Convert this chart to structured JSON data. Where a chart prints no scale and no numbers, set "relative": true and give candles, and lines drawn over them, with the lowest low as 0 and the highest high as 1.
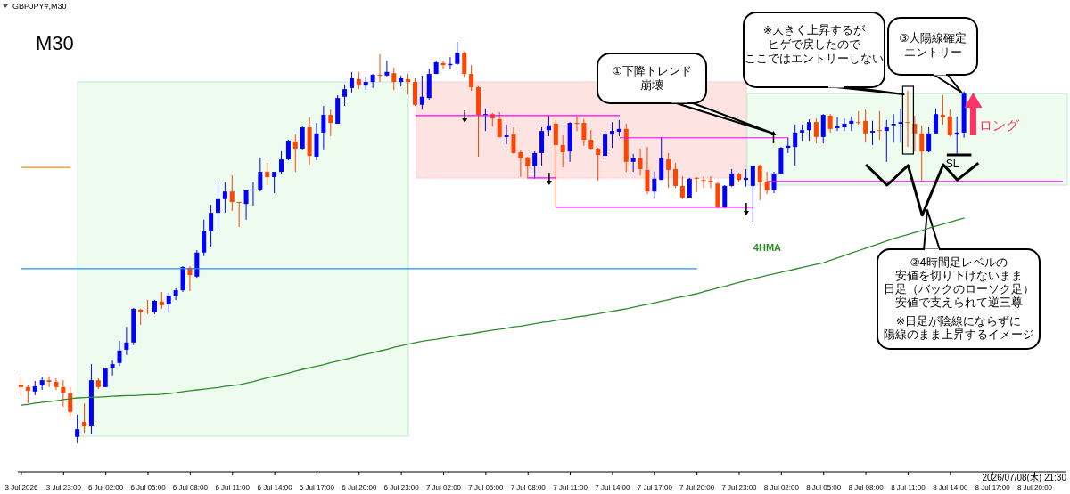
{
  "chart_data": {
    "type": "candlestick",
    "relative": true,
    "categories": [
      "3 Jul 2026",
      null,
      null,
      null,
      null,
      null,
      "3 Jul 23:00",
      null,
      null,
      null,
      null,
      null,
      "6 Jul 02:00",
      null,
      null,
      null,
      null,
      null,
      "6 Jul 05:00",
      null,
      null,
      null,
      null,
      null,
      "6 Jul 08:00",
      null,
      null,
      null,
      null,
      null,
      "6 Jul 11:00",
      null,
      null,
      null,
      null,
      null,
      "6 Jul 14:00",
      null,
      null,
      null,
      null,
      null,
      "6 Jul 17:00",
      null,
      null,
      null,
      null,
      null,
      "6 Jul 20:00",
      null,
      null,
      null,
      null,
      null,
      "6 Jul 23:00",
      null,
      null,
      null,
      null,
      null,
      "7 Jul 02:00",
      null,
      null,
      null,
      null,
      null,
      "7 Jul 05:00",
      null,
      null,
      null,
      null,
      null,
      "7 Jul 08:00",
      null,
      null,
      null,
      null,
      null,
      "7 Jul 11:00",
      null,
      null,
      null,
      null,
      null,
      "7 Jul 14:00",
      null,
      null,
      null,
      null,
      null,
      "7 Jul 17:00",
      null,
      null,
      null,
      null,
      null,
      "7 Jul 20:00",
      null,
      null,
      null,
      null,
      null,
      "7 Jul 23:00",
      null,
      null,
      null,
      null,
      null,
      "8 Jul 02:00",
      null,
      null,
      null,
      null,
      null,
      "8 Jul 05:00",
      null,
      null,
      null,
      null,
      null,
      "8 Jul 08:00",
      null,
      null,
      null,
      null,
      null,
      "8 Jul 11:00",
      null,
      null,
      null,
      null,
      null,
      "8 Jul 14:00",
      null,
      null,
      null,
      null,
      null,
      "8 Jul 17:00",
      null,
      null,
      null,
      null,
      null,
      "8 Jul 20:00",
      null,
      null,
      null,
      null
    ],
    "ohlc": [
      [
        0.146,
        0.166,
        0.118,
        0.14
      ],
      [
        0.14,
        0.146,
        0.1,
        0.131
      ],
      [
        0.129,
        0.155,
        0.12,
        0.142
      ],
      [
        0.144,
        0.166,
        0.133,
        0.157
      ],
      [
        0.157,
        0.166,
        0.14,
        0.153
      ],
      [
        0.153,
        0.162,
        0.133,
        0.14
      ],
      [
        0.14,
        0.157,
        0.091,
        0.126
      ],
      [
        0.124,
        0.14,
        0.067,
        0.078
      ],
      [
        0.016,
        0.071,
        0,
        0.035
      ],
      [
        0.053,
        0.1,
        0.024,
        0.042
      ],
      [
        0.042,
        0.197,
        0.022,
        0.157
      ],
      [
        0.157,
        0.162,
        0.135,
        0.14
      ],
      [
        0.14,
        0.188,
        0.14,
        0.186
      ],
      [
        0.188,
        0.206,
        0.169,
        0.197
      ],
      [
        0.2,
        0.255,
        0.193,
        0.231
      ],
      [
        0.233,
        0.29,
        0.22,
        0.251
      ],
      [
        0.251,
        0.337,
        0.244,
        0.335
      ],
      [
        0.333,
        0.335,
        0.295,
        0.328
      ],
      [
        0.328,
        0.357,
        0.322,
        0.326
      ],
      [
        0.326,
        0.357,
        0.322,
        0.355
      ],
      [
        0.353,
        0.377,
        0.335,
        0.344
      ],
      [
        0.346,
        0.375,
        0.328,
        0.368
      ],
      [
        0.368,
        0.386,
        0.357,
        0.381
      ],
      [
        0.381,
        0.441,
        0.377,
        0.439
      ],
      [
        0.437,
        0.441,
        0.379,
        0.419
      ],
      [
        0.415,
        0.481,
        0.412,
        0.475
      ],
      [
        0.475,
        0.557,
        0.466,
        0.528
      ],
      [
        0.528,
        0.594,
        0.49,
        0.574
      ],
      [
        0.574,
        0.652,
        0.534,
        0.608
      ],
      [
        0.608,
        0.65,
        0.574,
        0.627
      ],
      [
        0.627,
        0.667,
        0.579,
        0.601
      ],
      [
        0.601,
        0.601,
        0.539,
        0.599
      ],
      [
        0.596,
        0.632,
        0.557,
        0.63
      ],
      [
        0.63,
        0.65,
        0.592,
        0.632
      ],
      [
        0.632,
        0.712,
        0.627,
        0.676
      ],
      [
        0.676,
        0.698,
        0.643,
        0.663
      ],
      [
        0.663,
        0.676,
        0.623,
        0.676
      ],
      [
        0.676,
        0.727,
        0.672,
        0.707
      ],
      [
        0.707,
        0.756,
        0.705,
        0.754
      ],
      [
        0.752,
        0.769,
        0.676,
        0.734
      ],
      [
        0.734,
        0.789,
        0.732,
        0.787
      ],
      [
        0.787,
        0.812,
        0.694,
        0.716
      ],
      [
        0.714,
        0.798,
        0.705,
        0.772
      ],
      [
        0.774,
        0.84,
        0.732,
        0.818
      ],
      [
        0.818,
        0.831,
        0.765,
        0.798
      ],
      [
        0.796,
        0.867,
        0.796,
        0.86
      ],
      [
        0.863,
        0.894,
        0.84,
        0.882
      ],
      [
        0.885,
        0.925,
        0.874,
        0.909
      ],
      [
        0.907,
        0.925,
        0.882,
        0.891
      ],
      [
        0.891,
        0.914,
        0.88,
        0.9
      ],
      [
        0.9,
        0.92,
        0.885,
        0.918
      ],
      [
        0.918,
        0.969,
        0.9,
        0.916
      ],
      [
        0.916,
        0.953,
        0.914,
        0.925
      ],
      [
        0.922,
        0.936,
        0.88,
        0.9
      ],
      [
        0.9,
        0.916,
        0.889,
        0.909
      ],
      [
        0.907,
        0.92,
        0.869,
        0.9
      ],
      [
        0.9,
        0.909,
        0.84,
        0.843
      ],
      [
        0.843,
        0.916,
        0.831,
        0.863
      ],
      [
        0.86,
        0.933,
        0.856,
        0.92
      ],
      [
        0.92,
        0.953,
        0.92,
        0.949
      ],
      [
        0.947,
        0.953,
        0.933,
        0.942
      ],
      [
        0.942,
        0.962,
        0.931,
        0.945
      ],
      [
        0.945,
        1,
        0.942,
        0.973
      ],
      [
        0.973,
        0.976,
        0.911,
        0.92
      ],
      [
        0.92,
        0.942,
        0.878,
        0.887
      ],
      [
        0.887,
        0.889,
        0.714,
        0.818
      ],
      [
        0.818,
        0.834,
        0.778,
        0.82
      ],
      [
        0.82,
        0.823,
        0.789,
        0.809
      ],
      [
        0.807,
        0.825,
        0.761,
        0.763
      ],
      [
        0.763,
        0.794,
        0.745,
        0.767
      ],
      [
        0.769,
        0.787,
        0.721,
        0.723
      ],
      [
        0.725,
        0.732,
        0.663,
        0.71
      ],
      [
        0.712,
        0.714,
        0.659,
        0.69
      ],
      [
        0.69,
        0.727,
        0.659,
        0.723
      ],
      [
        0.723,
        0.787,
        0.69,
        0.778
      ],
      [
        0.78,
        0.816,
        0.765,
        0.792
      ],
      [
        0.796,
        0.805,
        0.588,
        0.743
      ],
      [
        0.743,
        0.767,
        0.687,
        0.725
      ],
      [
        0.727,
        0.8,
        0.701,
        0.798
      ],
      [
        0.798,
        0.814,
        0.778,
        0.796
      ],
      [
        0.798,
        0.807,
        0.741,
        0.756
      ],
      [
        0.756,
        0.78,
        0.732,
        0.734
      ],
      [
        0.734,
        0.736,
        0.654,
        0.718
      ],
      [
        0.716,
        0.778,
        0.712,
        0.769
      ],
      [
        0.769,
        0.8,
        0.736,
        0.778
      ],
      [
        0.776,
        0.805,
        0.765,
        0.783
      ],
      [
        0.783,
        0.796,
        0.676,
        0.701
      ],
      [
        0.701,
        0.721,
        0.676,
        0.71
      ],
      [
        0.71,
        0.734,
        0.667,
        0.683
      ],
      [
        0.681,
        0.738,
        0.621,
        0.627
      ],
      [
        0.627,
        0.676,
        0.61,
        0.659
      ],
      [
        0.656,
        0.763,
        0.656,
        0.71
      ],
      [
        0.707,
        0.723,
        0.636,
        0.681
      ],
      [
        0.683,
        0.698,
        0.636,
        0.641
      ],
      [
        0.641,
        0.665,
        0.608,
        0.612
      ],
      [
        0.612,
        0.661,
        0.61,
        0.659
      ],
      [
        0.661,
        0.663,
        0.625,
        0.659
      ],
      [
        0.656,
        0.665,
        0.636,
        0.654
      ],
      [
        0.654,
        0.665,
        0.636,
        0.65
      ],
      [
        0.647,
        0.65,
        0.585,
        0.588
      ],
      [
        0.588,
        0.643,
        0.585,
        0.641
      ],
      [
        0.641,
        0.683,
        0.639,
        0.672
      ],
      [
        0.67,
        0.674,
        0.65,
        0.656
      ],
      [
        0.656,
        0.683,
        0.639,
        0.661
      ],
      [
        0.641,
        0.692,
        0.552,
        0.69
      ],
      [
        0.692,
        0.694,
        0.605,
        0.65
      ],
      [
        0.652,
        0.676,
        0.621,
        0.63
      ],
      [
        0.63,
        0.676,
        0.623,
        0.672
      ],
      [
        0.672,
        0.738,
        0.67,
        0.736
      ],
      [
        0.736,
        0.761,
        0.723,
        0.741
      ],
      [
        0.738,
        0.794,
        0.692,
        0.774
      ],
      [
        0.774,
        0.794,
        0.754,
        0.78
      ],
      [
        0.78,
        0.807,
        0.754,
        0.8
      ],
      [
        0.8,
        0.809,
        0.747,
        0.763
      ],
      [
        0.763,
        0.82,
        0.747,
        0.818
      ],
      [
        0.816,
        0.82,
        0.774,
        0.783
      ],
      [
        0.785,
        0.812,
        0.778,
        0.789
      ],
      [
        0.787,
        0.809,
        0.778,
        0.796
      ],
      [
        0.796,
        0.814,
        0.778,
        0.803
      ],
      [
        0.8,
        0.827,
        0.794,
        0.798
      ],
      [
        0.803,
        0.831,
        0.749,
        0.772
      ],
      [
        0.774,
        0.803,
        0.743,
        0.778
      ],
      [
        0.78,
        0.827,
        0.756,
        0.778
      ],
      [
        0.778,
        0.805,
        0.701,
        0.787
      ],
      [
        0.792,
        0.82,
        0.749,
        0.796
      ],
      [
        0.796,
        0.834,
        0.749,
        0.8
      ],
      [
        0.8,
        0.878,
        0.738,
        0.798
      ],
      [
        0.796,
        0.816,
        0.727,
        0.772
      ],
      [
        0.772,
        0.792,
        0.652,
        0.727
      ],
      [
        0.727,
        0.787,
        0.725,
        0.772
      ],
      [
        0.772,
        0.834,
        0.772,
        0.82
      ],
      [
        0.818,
        0.867,
        0.794,
        0.812
      ],
      [
        0.814,
        0.831,
        0.765,
        0.767
      ],
      [
        0.769,
        0.814,
        0.721,
        0.774
      ],
      [
        0.774,
        0.876,
        0.761,
        0.871
      ],
      null,
      null,
      null,
      null,
      null,
      null,
      null,
      null,
      null,
      null,
      null,
      null,
      null,
      null
    ],
    "colors": [
      "#ff4500",
      "#ff4500",
      "#0000ff",
      "#0000ff",
      "#ff4500",
      "#ff4500",
      "#ff4500",
      "#ff4500",
      "#0000ff",
      "#ff4500",
      "#0000ff",
      "#ff4500",
      "#0000ff",
      "#0000ff",
      "#0000ff",
      "#0000ff",
      "#0000ff",
      "#ff4500",
      "#ff4500",
      "#0000ff",
      "#ff4500",
      "#0000ff",
      "#0000ff",
      "#0000ff",
      "#ff4500",
      "#0000ff",
      "#0000ff",
      "#0000ff",
      "#0000ff",
      "#0000ff",
      "#ff4500",
      "#ff4500",
      "#0000ff",
      "#0000ff",
      "#0000ff",
      "#ff4500",
      "#0000ff",
      "#0000ff",
      "#0000ff",
      "#ff4500",
      "#0000ff",
      "#ff4500",
      "#0000ff",
      "#0000ff",
      "#ff4500",
      "#0000ff",
      "#0000ff",
      "#0000ff",
      "#ff4500",
      "#0000ff",
      "#0000ff",
      "#ff4500",
      "#0000ff",
      "#ff4500",
      "#0000ff",
      "#ff4500",
      "#ff4500",
      "#0000ff",
      "#0000ff",
      "#0000ff",
      "#ff4500",
      "#0000ff",
      "#0000ff",
      "#ff4500",
      "#ff4500",
      "#ff4500",
      "#0000ff",
      "#ff4500",
      "#ff4500",
      "#0000ff",
      "#ff4500",
      "#ff4500",
      "#ff4500",
      "#0000ff",
      "#0000ff",
      "#0000ff",
      "#ff4500",
      "#ff4500",
      "#0000ff",
      "#ff4500",
      "#ff4500",
      "#ff4500",
      "#ff4500",
      "#0000ff",
      "#0000ff",
      "#0000ff",
      "#ff4500",
      "#0000ff",
      "#ff4500",
      "#ff4500",
      "#0000ff",
      "#0000ff",
      "#ff4500",
      "#ff4500",
      "#ff4500",
      "#0000ff",
      "#ff4500",
      "#ff4500",
      "#ff4500",
      "#ff4500",
      "#0000ff",
      "#0000ff",
      "#ff4500",
      "#0000ff",
      "#0000ff",
      "#ff4500",
      "#ff4500",
      "#0000ff",
      "#0000ff",
      "#0000ff",
      "#0000ff",
      "#0000ff",
      "#0000ff",
      "#ff4500",
      "#0000ff",
      "#ff4500",
      "#0000ff",
      "#0000ff",
      "#0000ff",
      "#ff4500",
      "#ff4500",
      "#0000ff",
      "#ff4500",
      "#0000ff",
      "#0000ff",
      "#0000ff",
      "#ff4500",
      "#ff4500",
      "#ff4500",
      "#0000ff",
      "#0000ff",
      "#ff4500",
      "#ff4500",
      "#0000ff",
      "#0000ff",
      null,
      null,
      null,
      null,
      null,
      null,
      null,
      null,
      null,
      null,
      null,
      null,
      null,
      null
    ],
    "series": [
      {
        "type": "line",
        "color": "#ff8c00",
        "values": [
          0.687,
          0.687,
          0.687,
          0.687,
          0.687,
          0.687,
          0.687,
          0.687,
          null,
          null,
          null,
          null,
          null,
          null,
          null,
          null,
          null,
          null,
          null,
          null,
          null,
          null,
          null,
          null,
          null,
          null,
          null,
          null,
          null,
          null,
          null,
          null,
          null,
          null,
          null,
          null,
          null,
          null,
          null,
          null,
          null,
          null,
          null,
          null,
          null,
          null,
          null,
          null,
          null,
          null,
          null,
          null,
          null,
          null,
          null,
          null,
          null,
          null,
          null,
          null,
          null,
          null,
          null,
          null,
          null,
          null,
          null,
          null,
          null,
          null,
          null,
          null,
          null,
          null,
          null,
          null,
          null,
          null,
          null,
          null,
          null,
          null,
          null,
          null,
          null,
          null,
          null,
          null,
          null,
          null,
          null,
          null,
          null,
          null,
          null,
          null,
          null,
          null,
          null,
          null,
          null,
          null,
          null,
          null,
          null,
          null,
          null,
          null,
          null,
          null,
          null,
          null,
          null,
          null,
          null,
          null,
          null,
          null,
          null,
          null,
          null,
          null,
          null,
          null,
          null,
          null,
          null,
          null,
          null,
          null,
          null,
          null,
          null,
          null,
          null,
          null,
          null,
          null,
          null,
          null,
          null,
          null,
          null,
          null,
          null,
          null,
          null,
          null,
          null
        ]
      },
      {
        "type": "line",
        "color": "#1e90ff",
        "values": [
          0.435,
          0.435,
          0.435,
          0.435,
          0.435,
          0.435,
          0.435,
          0.435,
          0.435,
          0.435,
          0.435,
          0.435,
          0.435,
          0.435,
          0.435,
          0.435,
          0.435,
          0.435,
          0.435,
          0.435,
          0.435,
          0.435,
          0.435,
          0.435,
          0.435,
          0.435,
          0.435,
          0.435,
          0.435,
          0.435,
          0.435,
          0.435,
          0.435,
          0.435,
          0.435,
          0.435,
          0.435,
          0.435,
          0.435,
          0.435,
          0.435,
          0.435,
          0.435,
          0.435,
          0.435,
          0.435,
          0.435,
          0.435,
          0.435,
          0.435,
          0.435,
          0.435,
          0.435,
          0.435,
          0.435,
          0.435,
          0.435,
          0.435,
          0.435,
          0.435,
          0.435,
          0.435,
          0.435,
          0.435,
          0.435,
          0.435,
          0.435,
          0.435,
          0.435,
          0.435,
          0.435,
          0.435,
          0.435,
          0.435,
          0.435,
          0.435,
          0.435,
          0.435,
          0.435,
          0.435,
          0.435,
          0.435,
          0.435,
          0.435,
          0.435,
          0.435,
          0.435,
          0.435,
          0.435,
          0.435,
          0.435,
          0.435,
          0.435,
          0.435,
          0.435,
          0.435,
          0.435,
          null,
          null,
          null,
          null,
          null,
          null,
          null,
          null,
          null,
          null,
          null,
          null,
          null,
          null,
          null,
          null,
          null,
          null,
          null,
          null,
          null,
          null,
          null,
          null,
          null,
          null,
          null,
          null,
          null,
          null,
          null,
          null,
          null,
          null,
          null,
          null,
          null,
          null,
          null,
          null,
          null,
          null,
          null,
          null,
          null,
          null,
          null,
          null,
          null,
          null,
          null,
          null
        ]
      },
      {
        "type": "line",
        "color": "#ff00ff",
        "values": [
          null,
          null,
          null,
          null,
          null,
          null,
          null,
          null,
          null,
          null,
          null,
          null,
          null,
          null,
          null,
          null,
          null,
          null,
          null,
          null,
          null,
          null,
          null,
          null,
          null,
          null,
          null,
          null,
          null,
          null,
          null,
          null,
          null,
          null,
          null,
          null,
          null,
          null,
          null,
          null,
          null,
          null,
          null,
          null,
          null,
          null,
          null,
          null,
          null,
          null,
          null,
          null,
          null,
          null,
          null,
          null,
          0.816,
          0.816,
          0.816,
          0.816,
          0.816,
          0.816,
          0.816,
          0.816,
          0.816,
          0.816,
          0.816,
          0.816,
          0.816,
          0.816,
          0.816,
          0.816,
          0.816,
          0.816,
          0.816,
          0.816,
          0.816,
          0.816,
          0.816,
          0.816,
          0.816,
          0.816,
          0.816,
          0.816,
          0.816,
          0.816,
          null,
          null,
          null,
          null,
          null,
          null,
          null,
          null,
          null,
          null,
          null,
          null,
          null,
          null,
          null,
          null,
          null,
          null,
          null,
          null,
          0.652,
          0.652,
          0.652,
          0.652,
          0.652,
          0.652,
          0.652,
          0.652,
          0.652,
          0.652,
          0.652,
          0.652,
          0.652,
          0.652,
          0.652,
          0.652,
          0.652,
          0.652,
          0.652,
          0.652,
          0.652,
          0.652,
          0.652,
          0.652,
          0.652,
          0.652,
          0.652,
          0.652,
          0.652,
          0.652,
          0.652,
          0.652,
          0.652,
          0.652,
          0.652,
          0.652,
          0.652,
          0.652,
          0.652,
          0.652,
          0.652,
          0.652,
          0.652
        ]
      },
      {
        "type": "line",
        "color": "#ff00ff",
        "values": [
          null,
          null,
          null,
          null,
          null,
          null,
          null,
          null,
          null,
          null,
          null,
          null,
          null,
          null,
          null,
          null,
          null,
          null,
          null,
          null,
          null,
          null,
          null,
          null,
          null,
          null,
          null,
          null,
          null,
          null,
          null,
          null,
          null,
          null,
          null,
          null,
          null,
          null,
          null,
          null,
          null,
          null,
          null,
          null,
          null,
          null,
          null,
          null,
          null,
          null,
          null,
          null,
          null,
          null,
          null,
          null,
          null,
          null,
          null,
          null,
          null,
          null,
          null,
          null,
          null,
          null,
          null,
          null,
          null,
          null,
          null,
          null,
          0.661,
          0.661,
          0.661,
          0.661,
          0.661,
          null,
          null,
          null,
          null,
          null,
          null,
          null,
          null,
          0.761,
          0.761,
          0.761,
          0.761,
          0.761,
          0.761,
          0.761,
          0.761,
          0.761,
          0.761,
          0.761,
          0.761,
          0.761,
          0.761,
          0.761,
          0.761,
          0.761,
          0.761,
          0.761,
          0.761,
          0.761,
          0.761,
          0.761,
          0.761,
          0.761,
          null,
          null,
          null,
          null,
          null,
          null,
          null,
          null,
          null,
          null,
          null,
          null,
          null,
          null,
          null,
          null,
          null,
          null,
          null,
          null,
          null,
          null,
          null,
          null,
          null,
          null,
          null,
          null,
          null,
          null,
          null,
          null,
          null,
          null,
          null,
          null,
          null,
          null,
          null
        ]
      },
      {
        "type": "line",
        "color": "#ff00ff",
        "values": [
          null,
          null,
          null,
          null,
          null,
          null,
          null,
          null,
          null,
          null,
          null,
          null,
          null,
          null,
          null,
          null,
          null,
          null,
          null,
          null,
          null,
          null,
          null,
          null,
          null,
          null,
          null,
          null,
          null,
          null,
          null,
          null,
          null,
          null,
          null,
          null,
          null,
          null,
          null,
          null,
          null,
          null,
          null,
          null,
          null,
          null,
          null,
          null,
          null,
          null,
          null,
          null,
          null,
          null,
          null,
          null,
          null,
          null,
          null,
          null,
          null,
          null,
          null,
          null,
          null,
          null,
          null,
          null,
          null,
          null,
          null,
          null,
          null,
          null,
          null,
          null,
          0.588,
          0.588,
          0.588,
          0.588,
          0.588,
          0.588,
          0.588,
          0.588,
          0.588,
          0.588,
          0.588,
          0.588,
          0.588,
          0.588,
          0.588,
          0.588,
          0.588,
          0.588,
          0.588,
          0.588,
          0.588,
          0.588,
          0.588,
          0.588,
          0.588,
          0.588,
          0.588,
          0.588,
          0.588,
          null,
          null,
          null,
          null,
          null,
          null,
          null,
          null,
          null,
          null,
          null,
          null,
          null,
          null,
          null,
          null,
          null,
          null,
          null,
          null,
          null,
          null,
          null,
          null,
          null,
          null,
          null,
          null,
          null,
          null,
          null,
          null,
          null,
          null,
          null,
          null,
          null,
          null,
          null,
          null,
          null,
          null,
          null,
          null
        ]
      },
      {
        "type": "line",
        "color": "#000000",
        "values": [
          null,
          null,
          null,
          null,
          null,
          null,
          null,
          null,
          null,
          null,
          null,
          null,
          null,
          null,
          null,
          null,
          null,
          null,
          null,
          null,
          null,
          null,
          null,
          null,
          null,
          null,
          null,
          null,
          null,
          null,
          null,
          null,
          null,
          null,
          null,
          null,
          null,
          null,
          null,
          null,
          null,
          null,
          null,
          null,
          null,
          null,
          null,
          null,
          null,
          null,
          null,
          null,
          null,
          null,
          null,
          null,
          null,
          null,
          null,
          null,
          null,
          null,
          null,
          null,
          null,
          null,
          null,
          null,
          null,
          null,
          null,
          null,
          null,
          null,
          null,
          null,
          null,
          null,
          null,
          null,
          null,
          null,
          null,
          null,
          null,
          null,
          null,
          null,
          null,
          null,
          null,
          null,
          null,
          null,
          null,
          null,
          null,
          null,
          null,
          null,
          null,
          null,
          null,
          null,
          null,
          null,
          null,
          null,
          null,
          null,
          null,
          null,
          null,
          null,
          null,
          null,
          null,
          null,
          null,
          null,
          0.694,
          0.677,
          0.66,
          0.643,
          0.659,
          0.676,
          0.692,
          0.63,
          0.568,
          0.61,
          0.652,
          0.694,
          0.675,
          0.656,
          0.67,
          0.684,
          0.698,
          null,
          null,
          null,
          null,
          null,
          null,
          null,
          null,
          null,
          null,
          null,
          null
        ]
      },
      {
        "type": "line",
        "name": "4HMA",
        "color": "#2e8b2e",
        "values": [
          0.095,
          0.097,
          0.1,
          0.102,
          0.104,
          0.106,
          0.109,
          0.111,
          0.113,
          0.114,
          0.115,
          0.115,
          0.116,
          0.117,
          0.118,
          0.119,
          0.119,
          0.12,
          0.121,
          0.121,
          0.122,
          0.124,
          0.126,
          0.129,
          0.131,
          0.133,
          0.135,
          0.137,
          0.139,
          0.142,
          0.144,
          0.146,
          0.15,
          0.154,
          0.159,
          0.163,
          0.167,
          0.171,
          0.175,
          0.18,
          0.184,
          0.188,
          0.192,
          0.196,
          0.201,
          0.205,
          0.209,
          0.213,
          0.218,
          0.222,
          0.226,
          0.23,
          0.234,
          0.239,
          0.243,
          0.247,
          0.251,
          0.254,
          0.257,
          0.259,
          0.262,
          0.265,
          0.268,
          0.271,
          0.273,
          0.276,
          0.279,
          0.282,
          0.284,
          0.287,
          0.29,
          0.292,
          0.295,
          0.298,
          0.301,
          0.303,
          0.306,
          0.309,
          0.312,
          0.315,
          0.317,
          0.32,
          0.323,
          0.326,
          0.329,
          0.332,
          0.335,
          0.339,
          0.343,
          0.346,
          0.35,
          0.354,
          0.358,
          0.362,
          0.365,
          0.369,
          0.373,
          0.378,
          0.382,
          0.387,
          0.391,
          0.396,
          0.401,
          0.405,
          0.41,
          0.414,
          0.418,
          0.422,
          0.426,
          0.43,
          0.434,
          0.438,
          0.442,
          0.446,
          0.45,
          0.456,
          0.462,
          0.468,
          0.474,
          0.48,
          0.486,
          0.492,
          0.498,
          0.504,
          0.51,
          0.515,
          0.52,
          0.525,
          0.53,
          0.536,
          0.541,
          0.546,
          0.551,
          0.556,
          0.561,
          null,
          null,
          null,
          null,
          null,
          null,
          null,
          null,
          null,
          null,
          null,
          null,
          null,
          null
        ]
      }
    ],
    "annotations": [
      "GBPJPY#,M30",
      "M30",
      "①下降トレンド崩壊",
      "※大きく上昇するがヒゲで戻したのでここではエントリーしない",
      "③大陽線確定エントリー",
      "②4時間足レベルの安値を切り下げないまま日足（バックのローソク足）安値で支えられて逆三尊",
      "※日足が陰線にならずに陽線のまま上昇するイメージ",
      "SL",
      "ロング",
      "2026/07/08(木) 21:30"
    ]
  }
}
